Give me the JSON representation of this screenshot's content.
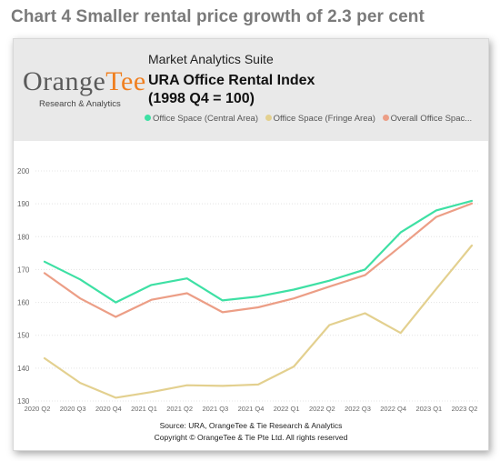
{
  "page": {
    "heading": "Chart 4 Smaller rental price growth of 2.3 per cent"
  },
  "header": {
    "logo_part1": "Orange",
    "logo_part2": "Tee",
    "logo_tagline": "Research & Analytics",
    "suite_name": "Market Analytics Suite",
    "title_line1": "URA Office Rental Index",
    "title_line2": "(1998 Q4 = 100)"
  },
  "footer": {
    "source": "Source: URA, OrangeTee & Tie Research & Analytics",
    "copyright": "Copyright © OrangeTee & Tie Pte Ltd. All rights reserved"
  },
  "colors": {
    "central": "#3ee0a4",
    "fringe": "#e3d08f",
    "overall": "#ec9e86",
    "grid": "#e4e4e4",
    "tick_text": "#666666"
  },
  "chart_data": {
    "type": "line",
    "title": "URA Office Rental Index",
    "subtitle": "(1998 Q4 = 100)",
    "categories": [
      "2020 Q2",
      "2020 Q3",
      "2020 Q4",
      "2021 Q1",
      "2021 Q2",
      "2021 Q3",
      "2021 Q4",
      "2022 Q1",
      "2022 Q2",
      "2022 Q3",
      "2022 Q4",
      "2023 Q1",
      "2023 Q2"
    ],
    "yticks": [
      "200",
      "190",
      "180",
      "170",
      "160",
      "150",
      "140",
      "130"
    ],
    "ylim": [
      130,
      200
    ],
    "grid": true,
    "legend_position": "top",
    "series": [
      {
        "name": "Office Space (Central Area)",
        "color_key": "central",
        "values": [
          172.4,
          167.0,
          160.0,
          165.3,
          167.3,
          160.6,
          161.8,
          163.9,
          166.6,
          170.0,
          181.3,
          188.0,
          190.9
        ]
      },
      {
        "name": "Office Space (Fringe Area)",
        "color_key": "fringe",
        "legend_label": "Office Space (Fringe Area)",
        "values": [
          143.0,
          135.5,
          131.0,
          132.7,
          134.8,
          134.6,
          135.0,
          140.5,
          153.1,
          156.7,
          150.7,
          164.1,
          177.3
        ]
      },
      {
        "name": "Overall Office Space",
        "color_key": "overall",
        "legend_label": "Overall Office Spac...",
        "values": [
          168.9,
          161.2,
          155.6,
          160.8,
          162.8,
          157.0,
          158.5,
          161.2,
          164.8,
          168.3,
          177.1,
          186.0,
          190.1
        ]
      }
    ],
    "legend": [
      "Office Space (Central Area)",
      "Office Space (Fringe Area)",
      "Overall Office Spac..."
    ]
  }
}
